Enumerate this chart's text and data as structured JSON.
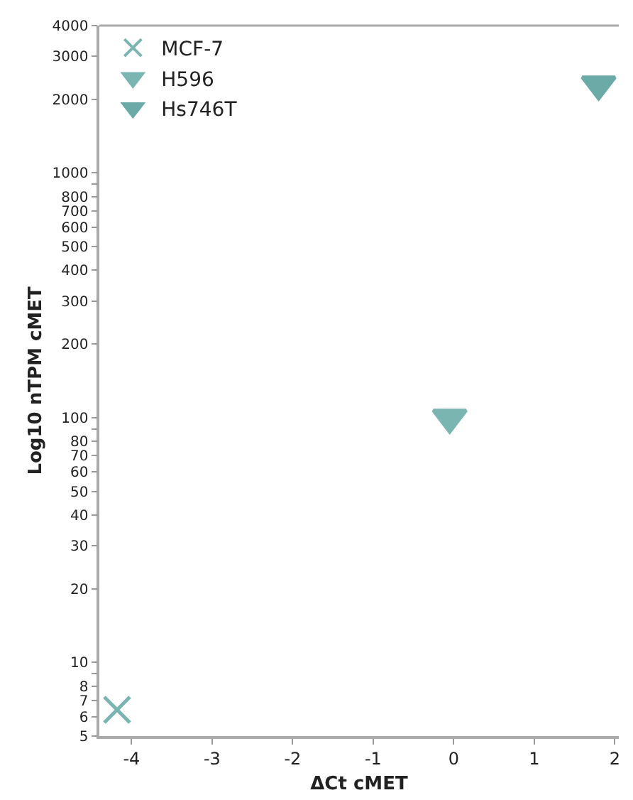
{
  "chart_data": {
    "type": "scatter",
    "xlabel": "ΔCt cMET",
    "ylabel": "Log10 nTPM cMET",
    "log": "y",
    "grid": false,
    "legend": "top left",
    "xlim": [
      -4.4,
      2.05
    ],
    "xticks": [
      -4,
      -3,
      -2,
      -1,
      0,
      1,
      2
    ],
    "ylim": [
      5,
      4000
    ],
    "yticks": [
      5,
      6,
      7,
      8,
      {
        "value": 9,
        "label": null
      },
      10,
      20,
      30,
      40,
      50,
      60,
      70,
      80,
      {
        "value": 90,
        "label": null
      },
      100,
      200,
      300,
      400,
      500,
      600,
      700,
      800,
      {
        "value": 900,
        "label": null
      },
      1000,
      2000,
      3000,
      4000
    ],
    "series": [
      {
        "name": "MCF-7",
        "color": "#7ab5b2",
        "marker": "cross",
        "x": [
          -4.18
        ],
        "values": [
          6.4
        ]
      },
      {
        "name": "H596",
        "color": "#7ab5b2",
        "marker": "triangle",
        "x": [
          -0.05
        ],
        "values": [
          100
        ]
      },
      {
        "name": "Hs746T",
        "color": "#6aaba8",
        "marker": "triangle",
        "x": [
          1.8
        ],
        "values": [
          2300
        ]
      }
    ]
  }
}
